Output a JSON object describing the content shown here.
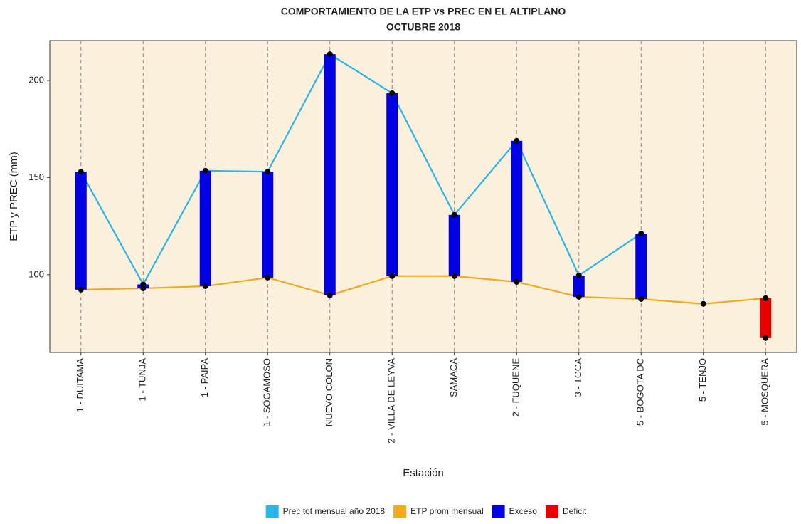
{
  "chart_data": {
    "type": "line-range",
    "title": "COMPORTAMIENTO DE LA ETP vs PREC EN EL ALTIPLANO",
    "subtitle": "OCTUBRE 2018",
    "x_label": "Estación",
    "y_label": "ETP y PREC (mm)",
    "categories": [
      "1 - DUITAMA",
      "1 - TUNJA",
      "1 - PAIPA",
      "1 - SOGAMOSO",
      "NUEVO COLON",
      "2 - VILLA DE LEYVA",
      "SAMACA",
      "2 - FUQUENE",
      "3 - TOCA",
      "5 - BOGOTA DC",
      "5 - TENJO",
      "5 - MOSQUERA"
    ],
    "series": [
      {
        "name": "Prec tot mensual año 2018",
        "color": "#29b6e8",
        "values": [
          153,
          95,
          153.5,
          153,
          213.5,
          193.4,
          130.8,
          168.9,
          99.6,
          121.2,
          null,
          null
        ]
      },
      {
        "name": "ETP prom mensual",
        "color": "#f4a81c",
        "values": [
          92.3,
          93,
          94.1,
          98.5,
          89.4,
          99.3,
          99.3,
          96.3,
          88.6,
          87.5,
          85,
          87.9
        ]
      },
      {
        "name": "Exceso",
        "color": "#0000e6"
      },
      {
        "name": "Deficit",
        "color": "#e60000",
        "values": [
          null,
          null,
          null,
          null,
          null,
          null,
          null,
          null,
          null,
          null,
          null,
          67.4
        ]
      }
    ],
    "ylim": [
      60,
      220.5
    ],
    "yticks": [
      100,
      150,
      200
    ],
    "grid": true
  }
}
